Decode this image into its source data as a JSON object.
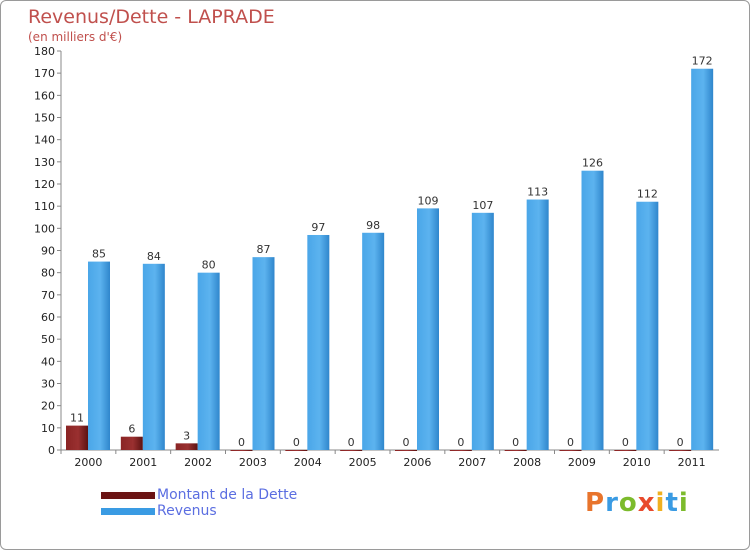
{
  "chart_data": {
    "type": "bar",
    "title": "Revenus/Dette - LAPRADE",
    "subtitle": "(en milliers d'€)",
    "categories": [
      "2000",
      "2001",
      "2002",
      "2003",
      "2004",
      "2005",
      "2006",
      "2007",
      "2008",
      "2009",
      "2010",
      "2011"
    ],
    "series": [
      {
        "name": "Montant de la Dette",
        "color": "#7b1f1f",
        "values": [
          11,
          6,
          3,
          0,
          0,
          0,
          0,
          0,
          0,
          0,
          0,
          0
        ]
      },
      {
        "name": "Revenus",
        "color": "#3a9be3",
        "values": [
          85,
          84,
          80,
          87,
          97,
          98,
          109,
          107,
          113,
          126,
          112,
          172
        ]
      }
    ],
    "ylim": [
      0,
      180
    ],
    "yticks": [
      0,
      10,
      20,
      30,
      40,
      50,
      60,
      70,
      80,
      90,
      100,
      110,
      120,
      130,
      140,
      150,
      160,
      170,
      180
    ],
    "xlabel": "",
    "ylabel": "",
    "grid": false,
    "legend_position": "bottom-left"
  },
  "logo": {
    "letters": [
      "P",
      "r",
      "o",
      "x",
      "i",
      "t",
      "i"
    ],
    "colors": [
      "#e8742c",
      "#3a9be3",
      "#7cbb2c",
      "#e84a2c",
      "#f0b020",
      "#3a9be3",
      "#7cbb2c"
    ]
  }
}
